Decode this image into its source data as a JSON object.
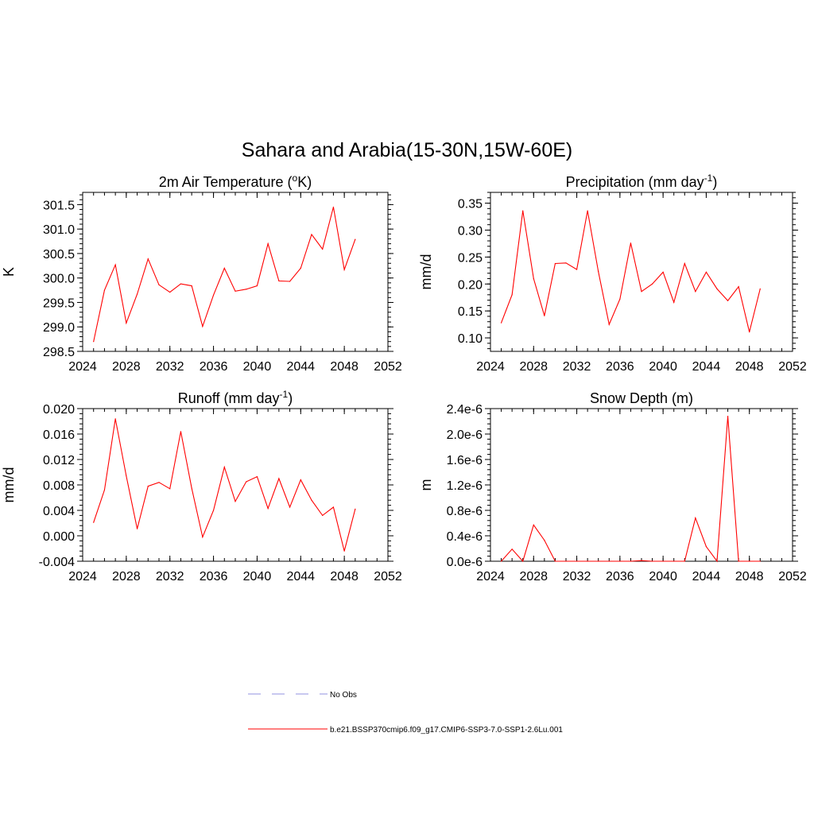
{
  "main_title": "Sahara and Arabia(15-30N,15W-60E)",
  "legend": {
    "obs_label": "No Obs",
    "obs_color": "#a8a8e8",
    "model_label": "b.e21.BSSP370cmip6.f09_g17.CMIP6-SSP3-7.0-SSP1-2.6Lu.001",
    "model_color": "#ff0000"
  },
  "chart_data": [
    {
      "type": "line",
      "title": "2m Air Temperature (°K)",
      "title_parts": {
        "base": "2m Air Temperature (",
        "sup": "o",
        "tail": "K)"
      },
      "ylabel": "K",
      "xlim": [
        2024,
        2052
      ],
      "ylim": [
        298.5,
        301.75
      ],
      "x_ticks": [
        "2024",
        "2028",
        "2032",
        "2036",
        "2040",
        "2044",
        "2048",
        "2052"
      ],
      "y_ticks": [
        "298.5",
        "299.0",
        "299.5",
        "300.0",
        "300.5",
        "301.0",
        "301.5"
      ],
      "y_tick_values": [
        298.5,
        299.0,
        299.5,
        300.0,
        300.5,
        301.0,
        301.5
      ],
      "x": [
        2025,
        2026,
        2027,
        2028,
        2029,
        2030,
        2031,
        2032,
        2033,
        2034,
        2035,
        2036,
        2037,
        2038,
        2039,
        2040,
        2041,
        2042,
        2043,
        2044,
        2045,
        2046,
        2047,
        2048,
        2049
      ],
      "series": [
        {
          "name": "b.e21.BSSP370cmip6.f09_g17.CMIP6-SSP3-7.0-SSP1-2.6Lu.001",
          "color": "#ff0000",
          "values": [
            298.7,
            299.75,
            300.27,
            299.08,
            299.67,
            300.39,
            299.86,
            299.71,
            299.88,
            299.84,
            299.01,
            299.65,
            300.2,
            299.73,
            299.77,
            299.84,
            300.7,
            299.94,
            299.93,
            300.2,
            300.89,
            300.59,
            301.45,
            300.17,
            300.79
          ]
        }
      ]
    },
    {
      "type": "line",
      "title": "Precipitation (mm day-1)",
      "title_parts": {
        "base": "Precipitation (mm day",
        "sup": "-1",
        "tail": ")"
      },
      "ylabel": "mm/d",
      "xlim": [
        2024,
        2052
      ],
      "ylim": [
        0.075,
        0.37
      ],
      "x_ticks": [
        "2024",
        "2028",
        "2032",
        "2036",
        "2040",
        "2044",
        "2048",
        "2052"
      ],
      "y_ticks": [
        "0.10",
        "0.15",
        "0.20",
        "0.25",
        "0.30",
        "0.35"
      ],
      "y_tick_values": [
        0.1,
        0.15,
        0.2,
        0.25,
        0.3,
        0.35
      ],
      "x": [
        2025,
        2026,
        2027,
        2028,
        2029,
        2030,
        2031,
        2032,
        2033,
        2034,
        2035,
        2036,
        2037,
        2038,
        2039,
        2040,
        2041,
        2042,
        2043,
        2044,
        2045,
        2046,
        2047,
        2048,
        2049
      ],
      "series": [
        {
          "name": "b.e21.BSSP370cmip6.f09_g17.CMIP6-SSP3-7.0-SSP1-2.6Lu.001",
          "color": "#ff0000",
          "values": [
            0.128,
            0.18,
            0.336,
            0.21,
            0.141,
            0.238,
            0.239,
            0.227,
            0.336,
            0.223,
            0.125,
            0.172,
            0.276,
            0.186,
            0.2,
            0.222,
            0.166,
            0.238,
            0.186,
            0.222,
            0.191,
            0.169,
            0.195,
            0.111,
            0.191
          ]
        }
      ]
    },
    {
      "type": "line",
      "title": "Runoff (mm day-1)",
      "title_parts": {
        "base": "Runoff (mm day",
        "sup": "-1",
        "tail": ")"
      },
      "ylabel": "mm/d",
      "xlim": [
        2024,
        2052
      ],
      "ylim": [
        -0.004,
        0.02
      ],
      "x_ticks": [
        "2024",
        "2028",
        "2032",
        "2036",
        "2040",
        "2044",
        "2048",
        "2052"
      ],
      "y_ticks": [
        "-0.004",
        "0.000",
        "0.004",
        "0.008",
        "0.012",
        "0.016",
        "0.020"
      ],
      "y_tick_values": [
        -0.004,
        0.0,
        0.004,
        0.008,
        0.012,
        0.016,
        0.02
      ],
      "x": [
        2025,
        2026,
        2027,
        2028,
        2029,
        2030,
        2031,
        2032,
        2033,
        2034,
        2035,
        2036,
        2037,
        2038,
        2039,
        2040,
        2041,
        2042,
        2043,
        2044,
        2045,
        2046,
        2047,
        2048,
        2049
      ],
      "series": [
        {
          "name": "b.e21.BSSP370cmip6.f09_g17.CMIP6-SSP3-7.0-SSP1-2.6Lu.001",
          "color": "#ff0000",
          "values": [
            0.0021,
            0.0072,
            0.0184,
            0.0094,
            0.0011,
            0.0078,
            0.0084,
            0.0074,
            0.0164,
            0.0075,
            -0.0002,
            0.004,
            0.0108,
            0.0054,
            0.0085,
            0.0093,
            0.0043,
            0.009,
            0.0045,
            0.0088,
            0.0056,
            0.0032,
            0.0045,
            -0.0024,
            0.0042
          ]
        }
      ]
    },
    {
      "type": "line",
      "title": "Snow Depth (m)",
      "title_parts": {
        "base": "Snow Depth (m)",
        "sup": "",
        "tail": ""
      },
      "ylabel": "m",
      "xlim": [
        2024,
        2052
      ],
      "ylim": [
        0,
        2.4e-06
      ],
      "x_ticks": [
        "2024",
        "2028",
        "2032",
        "2036",
        "2040",
        "2044",
        "2048",
        "2052"
      ],
      "y_ticks": [
        "0.0e-6",
        "0.4e-6",
        "0.8e-6",
        "1.2e-6",
        "1.6e-6",
        "2.0e-6",
        "2.4e-6"
      ],
      "y_tick_values": [
        0,
        4e-07,
        8e-07,
        1.2e-06,
        1.6e-06,
        2e-06,
        2.4e-06
      ],
      "x": [
        2025,
        2026,
        2027,
        2028,
        2029,
        2030,
        2031,
        2032,
        2033,
        2034,
        2035,
        2036,
        2037,
        2038,
        2039,
        2040,
        2041,
        2042,
        2043,
        2044,
        2045,
        2046,
        2047,
        2048,
        2049
      ],
      "series": [
        {
          "name": "b.e21.BSSP370cmip6.f09_g17.CMIP6-SSP3-7.0-SSP1-2.6Lu.001",
          "color": "#ff0000",
          "values": [
            0,
            1.9e-07,
            0,
            5.7e-07,
            3.3e-07,
            0,
            0,
            0,
            0,
            0,
            0,
            0,
            0,
            1e-08,
            0,
            0,
            0,
            0,
            6.8e-07,
            2.3e-07,
            0,
            2.28e-06,
            0,
            0,
            0
          ]
        }
      ]
    }
  ]
}
